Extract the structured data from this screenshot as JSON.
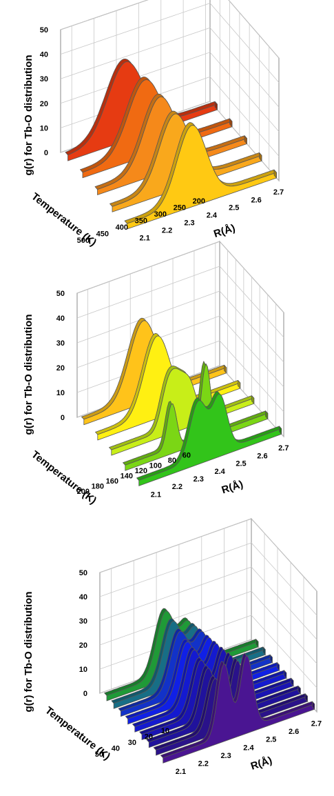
{
  "chart_data": [
    {
      "type": "area",
      "subtype": "3d-waterfall",
      "zlabel": "g(r) for Tb-O distribution",
      "ylabel": "Temperature (K)",
      "xlabel": "R(Å)",
      "xlim": [
        2.05,
        2.72
      ],
      "zlim": [
        0,
        50
      ],
      "x_ticks": [
        "2.1",
        "2.2",
        "2.3",
        "2.4",
        "2.5",
        "2.6",
        "2.7"
      ],
      "y_ticks": [
        "200",
        "250",
        "300",
        "350",
        "400",
        "450",
        "500"
      ],
      "z_ticks": [
        "0",
        "10",
        "20",
        "30",
        "40",
        "50"
      ],
      "series": [
        {
          "temperature": 500,
          "color": "#e63b12",
          "peaks": [
            {
              "center": 2.31,
              "height": 30,
              "width": 0.08
            }
          ]
        },
        {
          "temperature": 400,
          "color": "#f06a12",
          "peaks": [
            {
              "center": 2.33,
              "height": 29,
              "width": 0.075
            }
          ]
        },
        {
          "temperature": 350,
          "color": "#f5891a",
          "peaks": [
            {
              "center": 2.33,
              "height": 29,
              "width": 0.07
            }
          ]
        },
        {
          "temperature": 300,
          "color": "#f9a81c",
          "peaks": [
            {
              "center": 2.33,
              "height": 29,
              "width": 0.068
            }
          ]
        },
        {
          "temperature": 200,
          "color": "#ffc913",
          "peaks": [
            {
              "center": 2.34,
              "height": 31,
              "width": 0.065
            }
          ]
        }
      ]
    },
    {
      "type": "area",
      "subtype": "3d-waterfall",
      "zlabel": "g(r) for Tb-O distribution",
      "ylabel": "Temperature (K)",
      "xlabel": "R(Å)",
      "xlim": [
        2.05,
        2.72
      ],
      "zlim": [
        0,
        50
      ],
      "x_ticks": [
        "2.1",
        "2.2",
        "2.3",
        "2.4",
        "2.5",
        "2.6",
        "2.7"
      ],
      "y_ticks": [
        "60",
        "80",
        "100",
        "120",
        "140",
        "160",
        "180",
        "200"
      ],
      "z_ticks": [
        "0",
        "10",
        "20",
        "30",
        "40",
        "50"
      ],
      "series": [
        {
          "temperature": 200,
          "color": "#ffc31a",
          "peaks": [
            {
              "center": 2.33,
              "height": 31,
              "width": 0.065
            }
          ]
        },
        {
          "temperature": 160,
          "color": "#fff012",
          "peaks": [
            {
              "center": 2.33,
              "height": 31,
              "width": 0.06
            }
          ]
        },
        {
          "temperature": 120,
          "color": "#c8ee18",
          "peaks": [
            {
              "center": 2.31,
              "height": 13,
              "width": 0.03
            },
            {
              "center": 2.36,
              "height": 18,
              "width": 0.035
            },
            {
              "center": 2.42,
              "height": 13,
              "width": 0.03
            }
          ]
        },
        {
          "temperature": 80,
          "color": "#7bd615",
          "peaks": [
            {
              "center": 2.27,
              "height": 18,
              "width": 0.022
            },
            {
              "center": 2.43,
              "height": 29,
              "width": 0.022
            }
          ]
        },
        {
          "temperature": 60,
          "color": "#32c41a",
          "peaks": [
            {
              "center": 2.33,
              "height": 23,
              "width": 0.04
            },
            {
              "center": 2.43,
              "height": 22,
              "width": 0.035
            }
          ]
        }
      ]
    },
    {
      "type": "area",
      "subtype": "3d-waterfall",
      "zlabel": "g(r) for Tb-O distribution",
      "ylabel": "Temperature (K)",
      "xlabel": "R(Å)",
      "xlim": [
        2.05,
        2.72
      ],
      "zlim": [
        0,
        50
      ],
      "x_ticks": [
        "2.1",
        "2.2",
        "2.3",
        "2.4",
        "2.5",
        "2.6",
        "2.7"
      ],
      "y_ticks": [
        "10",
        "20",
        "30",
        "40",
        "50"
      ],
      "z_ticks": [
        "0",
        "10",
        "20",
        "30",
        "40",
        "50"
      ],
      "series": [
        {
          "temperature": 50,
          "color": "#1f9a37",
          "peaks": [
            {
              "center": 2.31,
              "height": 26,
              "width": 0.04
            },
            {
              "center": 2.41,
              "height": 18,
              "width": 0.035
            }
          ]
        },
        {
          "temperature": 45,
          "color": "#176e86",
          "peaks": [
            {
              "center": 2.31,
              "height": 25,
              "width": 0.04
            },
            {
              "center": 2.41,
              "height": 19,
              "width": 0.035
            }
          ]
        },
        {
          "temperature": 40,
          "color": "#1232c8",
          "peaks": [
            {
              "center": 2.31,
              "height": 24,
              "width": 0.04
            },
            {
              "center": 2.41,
              "height": 20,
              "width": 0.035
            }
          ]
        },
        {
          "temperature": 35,
          "color": "#1020e6",
          "peaks": [
            {
              "center": 2.31,
              "height": 23,
              "width": 0.038
            },
            {
              "center": 2.41,
              "height": 21,
              "width": 0.033
            }
          ]
        },
        {
          "temperature": 30,
          "color": "#141ad0",
          "peaks": [
            {
              "center": 2.31,
              "height": 23,
              "width": 0.036
            },
            {
              "center": 2.41,
              "height": 22,
              "width": 0.032
            }
          ]
        },
        {
          "temperature": 25,
          "color": "#1a14b4",
          "peaks": [
            {
              "center": 2.31,
              "height": 22,
              "width": 0.034
            },
            {
              "center": 2.41,
              "height": 23,
              "width": 0.03
            }
          ]
        },
        {
          "temperature": 20,
          "color": "#20129c",
          "peaks": [
            {
              "center": 2.31,
              "height": 22,
              "width": 0.032
            },
            {
              "center": 2.41,
              "height": 24,
              "width": 0.029
            }
          ]
        },
        {
          "temperature": 15,
          "color": "#2a128a",
          "peaks": [
            {
              "center": 2.31,
              "height": 21,
              "width": 0.03
            },
            {
              "center": 2.41,
              "height": 25,
              "width": 0.028
            }
          ]
        },
        {
          "temperature": 10,
          "color": "#4a1592",
          "peaks": [
            {
              "center": 2.32,
              "height": 30,
              "width": 0.028
            },
            {
              "center": 2.42,
              "height": 30,
              "width": 0.028
            }
          ]
        }
      ]
    }
  ]
}
